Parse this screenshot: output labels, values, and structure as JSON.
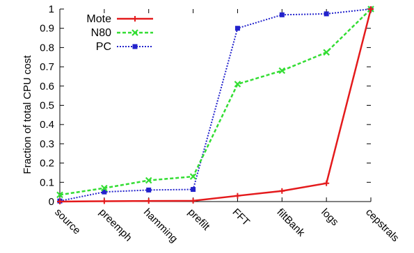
{
  "chart_data": {
    "type": "line",
    "title": "",
    "xlabel": "",
    "ylabel": "Fraction of total CPU cost",
    "categories": [
      "source",
      "preemph",
      "hamming",
      "prefilt",
      "FFT",
      "filtBank",
      "logs",
      "cepstrals"
    ],
    "ylim": [
      0,
      1
    ],
    "yticks": [
      "0",
      "0.1",
      "0.2",
      "0.3",
      "0.4",
      "0.5",
      "0.6",
      "0.7",
      "0.8",
      "0.9",
      "1"
    ],
    "grid": false,
    "legend_position": "top-left",
    "series": [
      {
        "name": "Mote",
        "color": "#e41a1c",
        "dash": "solid",
        "marker": "plus",
        "values": [
          0.0,
          0.002,
          0.003,
          0.004,
          0.03,
          0.055,
          0.095,
          1.0
        ]
      },
      {
        "name": "N80",
        "color": "#33dd33",
        "dash": "dashed",
        "marker": "x",
        "values": [
          0.035,
          0.07,
          0.11,
          0.13,
          0.61,
          0.68,
          0.775,
          1.0
        ]
      },
      {
        "name": "PC",
        "color": "#2222cc",
        "dash": "dotted",
        "marker": "square",
        "values": [
          0.003,
          0.05,
          0.06,
          0.063,
          0.9,
          0.97,
          0.975,
          1.0
        ]
      }
    ]
  }
}
